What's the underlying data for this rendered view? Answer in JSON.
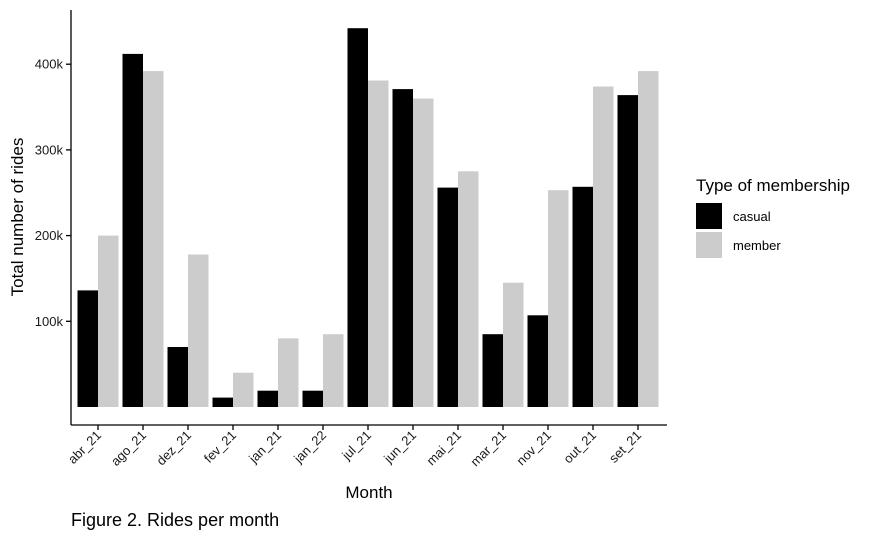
{
  "chart_data": {
    "type": "bar",
    "caption": "Figure 2. Rides per month",
    "xlabel": "Month",
    "ylabel": "Total number of rides",
    "categories": [
      "abr_21",
      "ago_21",
      "dez_21",
      "fev_21",
      "jan_21",
      "jan_22",
      "jul_21",
      "jun_21",
      "mai_21",
      "mar_21",
      "nov_21",
      "out_21",
      "set_21"
    ],
    "yticks": [
      100000,
      200000,
      300000,
      400000
    ],
    "ytick_labels": [
      "100k",
      "200k",
      "300k",
      "400k"
    ],
    "ylim": [
      0,
      460000
    ],
    "legend": {
      "title": "Type of membership",
      "position": "right"
    },
    "series": [
      {
        "name": "casual",
        "color": "#000000",
        "values": [
          136000,
          412000,
          70000,
          11000,
          19000,
          19000,
          442000,
          371000,
          256000,
          85000,
          107000,
          257000,
          364000
        ]
      },
      {
        "name": "member",
        "color": "#cccccc",
        "values": [
          200000,
          392000,
          178000,
          40000,
          80000,
          85000,
          381000,
          360000,
          275000,
          145000,
          253000,
          374000,
          392000
        ]
      }
    ],
    "grid": false
  }
}
